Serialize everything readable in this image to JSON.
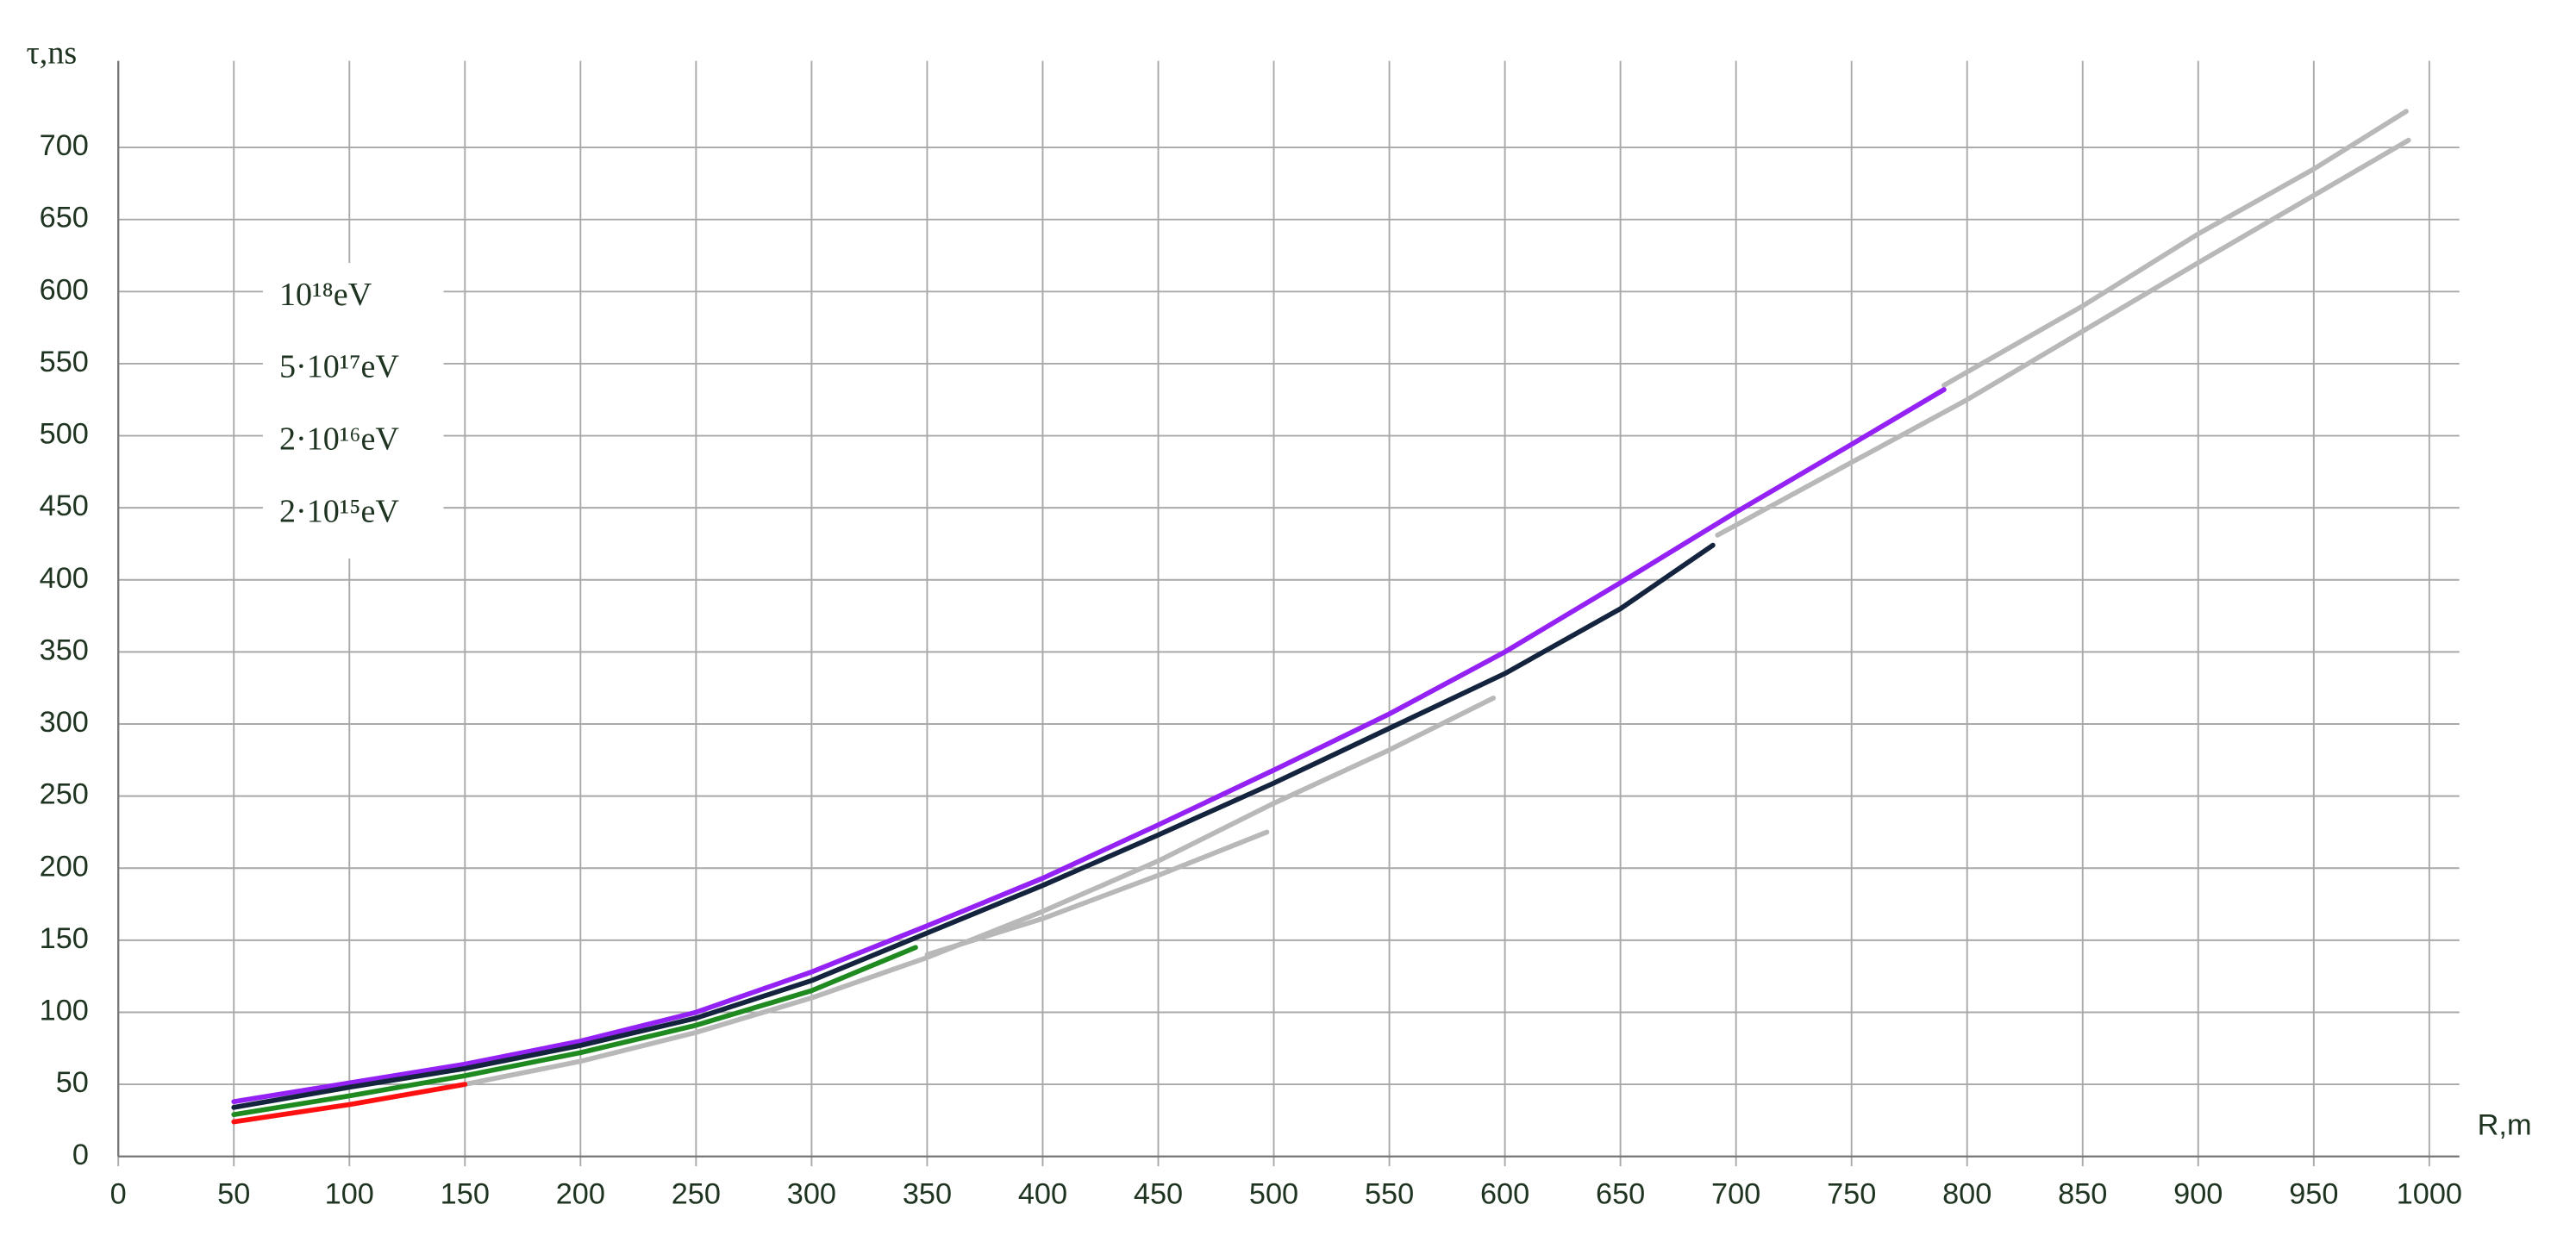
{
  "chart_data": {
    "type": "line",
    "y_label": "τ,ns",
    "x_label": "R,m",
    "xlim": [
      0,
      1013
    ],
    "ylim": [
      0,
      760
    ],
    "xticks": [
      0,
      50,
      100,
      150,
      200,
      250,
      300,
      350,
      400,
      450,
      500,
      550,
      600,
      650,
      700,
      750,
      800,
      850,
      900,
      950,
      1000
    ],
    "yticks": [
      0,
      50,
      100,
      150,
      200,
      250,
      300,
      350,
      400,
      450,
      500,
      550,
      600,
      650,
      700
    ],
    "grid": true,
    "legend": "upper-left",
    "series": [
      {
        "color": "#b8b8b8",
        "x": [
          790,
          850,
          900,
          950,
          990
        ],
        "values": [
          535,
          590,
          640,
          685,
          725
        ]
      },
      {
        "color": "#b8b8b8",
        "x": [
          692,
          800,
          900,
          991
        ],
        "values": [
          431,
          525,
          620,
          705
        ]
      },
      {
        "color": "#b8b8b8",
        "x": [
          150,
          200,
          250,
          300,
          350,
          400,
          450,
          500,
          550,
          595
        ],
        "values": [
          50,
          66,
          86,
          110,
          138,
          170,
          205,
          245,
          282,
          318
        ]
      },
      {
        "color": "#b8b8b8",
        "x": [
          350,
          400,
          450,
          497
        ],
        "values": [
          140,
          165,
          195,
          225
        ]
      },
      {
        "name": "10¹⁸eV",
        "color": "#9422f5",
        "x": [
          50,
          100,
          150,
          200,
          250,
          300,
          350,
          400,
          450,
          500,
          550,
          600,
          650,
          700,
          750,
          790
        ],
        "values": [
          38,
          51,
          64,
          80,
          100,
          128,
          160,
          193,
          230,
          268,
          307,
          350,
          398,
          447,
          494,
          532
        ]
      },
      {
        "name": "5·10¹⁷eV",
        "color": "#14243e",
        "x": [
          50,
          100,
          150,
          200,
          250,
          300,
          350,
          400,
          450,
          500,
          550,
          600,
          650,
          690
        ],
        "values": [
          34,
          48,
          61,
          77,
          96,
          122,
          155,
          188,
          223,
          259,
          297,
          335,
          380,
          424
        ]
      },
      {
        "name": "2·10¹⁶eV",
        "color": "#1f8a1f",
        "x": [
          50,
          100,
          150,
          200,
          250,
          300,
          345
        ],
        "values": [
          29,
          42,
          56,
          72,
          91,
          115,
          145
        ]
      },
      {
        "name": "2·10¹⁵eV",
        "color": "#ff1010",
        "x": [
          50,
          100,
          150
        ],
        "values": [
          24,
          36,
          50
        ]
      }
    ]
  }
}
